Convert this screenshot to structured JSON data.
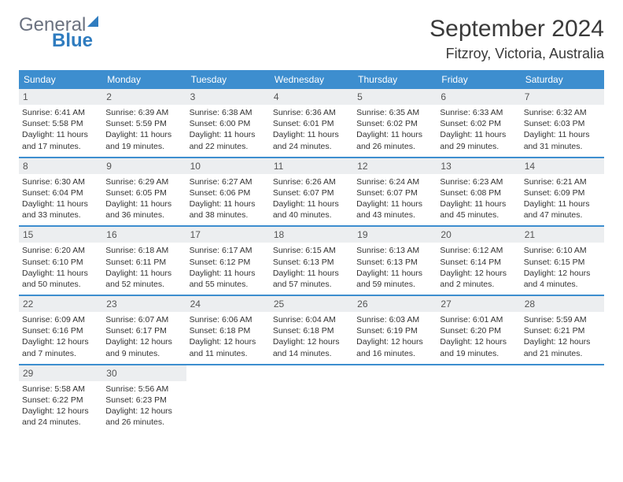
{
  "brand": {
    "word1": "General",
    "word2": "Blue"
  },
  "title": "September 2024",
  "location": "Fitzroy, Victoria, Australia",
  "header_bg": "#3d8ecf",
  "daynum_bg": "#eceef0",
  "dows": [
    "Sunday",
    "Monday",
    "Tuesday",
    "Wednesday",
    "Thursday",
    "Friday",
    "Saturday"
  ],
  "weeks": [
    [
      {
        "n": "1",
        "sr": "Sunrise: 6:41 AM",
        "ss": "Sunset: 5:58 PM",
        "d1": "Daylight: 11 hours",
        "d2": "and 17 minutes."
      },
      {
        "n": "2",
        "sr": "Sunrise: 6:39 AM",
        "ss": "Sunset: 5:59 PM",
        "d1": "Daylight: 11 hours",
        "d2": "and 19 minutes."
      },
      {
        "n": "3",
        "sr": "Sunrise: 6:38 AM",
        "ss": "Sunset: 6:00 PM",
        "d1": "Daylight: 11 hours",
        "d2": "and 22 minutes."
      },
      {
        "n": "4",
        "sr": "Sunrise: 6:36 AM",
        "ss": "Sunset: 6:01 PM",
        "d1": "Daylight: 11 hours",
        "d2": "and 24 minutes."
      },
      {
        "n": "5",
        "sr": "Sunrise: 6:35 AM",
        "ss": "Sunset: 6:02 PM",
        "d1": "Daylight: 11 hours",
        "d2": "and 26 minutes."
      },
      {
        "n": "6",
        "sr": "Sunrise: 6:33 AM",
        "ss": "Sunset: 6:02 PM",
        "d1": "Daylight: 11 hours",
        "d2": "and 29 minutes."
      },
      {
        "n": "7",
        "sr": "Sunrise: 6:32 AM",
        "ss": "Sunset: 6:03 PM",
        "d1": "Daylight: 11 hours",
        "d2": "and 31 minutes."
      }
    ],
    [
      {
        "n": "8",
        "sr": "Sunrise: 6:30 AM",
        "ss": "Sunset: 6:04 PM",
        "d1": "Daylight: 11 hours",
        "d2": "and 33 minutes."
      },
      {
        "n": "9",
        "sr": "Sunrise: 6:29 AM",
        "ss": "Sunset: 6:05 PM",
        "d1": "Daylight: 11 hours",
        "d2": "and 36 minutes."
      },
      {
        "n": "10",
        "sr": "Sunrise: 6:27 AM",
        "ss": "Sunset: 6:06 PM",
        "d1": "Daylight: 11 hours",
        "d2": "and 38 minutes."
      },
      {
        "n": "11",
        "sr": "Sunrise: 6:26 AM",
        "ss": "Sunset: 6:07 PM",
        "d1": "Daylight: 11 hours",
        "d2": "and 40 minutes."
      },
      {
        "n": "12",
        "sr": "Sunrise: 6:24 AM",
        "ss": "Sunset: 6:07 PM",
        "d1": "Daylight: 11 hours",
        "d2": "and 43 minutes."
      },
      {
        "n": "13",
        "sr": "Sunrise: 6:23 AM",
        "ss": "Sunset: 6:08 PM",
        "d1": "Daylight: 11 hours",
        "d2": "and 45 minutes."
      },
      {
        "n": "14",
        "sr": "Sunrise: 6:21 AM",
        "ss": "Sunset: 6:09 PM",
        "d1": "Daylight: 11 hours",
        "d2": "and 47 minutes."
      }
    ],
    [
      {
        "n": "15",
        "sr": "Sunrise: 6:20 AM",
        "ss": "Sunset: 6:10 PM",
        "d1": "Daylight: 11 hours",
        "d2": "and 50 minutes."
      },
      {
        "n": "16",
        "sr": "Sunrise: 6:18 AM",
        "ss": "Sunset: 6:11 PM",
        "d1": "Daylight: 11 hours",
        "d2": "and 52 minutes."
      },
      {
        "n": "17",
        "sr": "Sunrise: 6:17 AM",
        "ss": "Sunset: 6:12 PM",
        "d1": "Daylight: 11 hours",
        "d2": "and 55 minutes."
      },
      {
        "n": "18",
        "sr": "Sunrise: 6:15 AM",
        "ss": "Sunset: 6:13 PM",
        "d1": "Daylight: 11 hours",
        "d2": "and 57 minutes."
      },
      {
        "n": "19",
        "sr": "Sunrise: 6:13 AM",
        "ss": "Sunset: 6:13 PM",
        "d1": "Daylight: 11 hours",
        "d2": "and 59 minutes."
      },
      {
        "n": "20",
        "sr": "Sunrise: 6:12 AM",
        "ss": "Sunset: 6:14 PM",
        "d1": "Daylight: 12 hours",
        "d2": "and 2 minutes."
      },
      {
        "n": "21",
        "sr": "Sunrise: 6:10 AM",
        "ss": "Sunset: 6:15 PM",
        "d1": "Daylight: 12 hours",
        "d2": "and 4 minutes."
      }
    ],
    [
      {
        "n": "22",
        "sr": "Sunrise: 6:09 AM",
        "ss": "Sunset: 6:16 PM",
        "d1": "Daylight: 12 hours",
        "d2": "and 7 minutes."
      },
      {
        "n": "23",
        "sr": "Sunrise: 6:07 AM",
        "ss": "Sunset: 6:17 PM",
        "d1": "Daylight: 12 hours",
        "d2": "and 9 minutes."
      },
      {
        "n": "24",
        "sr": "Sunrise: 6:06 AM",
        "ss": "Sunset: 6:18 PM",
        "d1": "Daylight: 12 hours",
        "d2": "and 11 minutes."
      },
      {
        "n": "25",
        "sr": "Sunrise: 6:04 AM",
        "ss": "Sunset: 6:18 PM",
        "d1": "Daylight: 12 hours",
        "d2": "and 14 minutes."
      },
      {
        "n": "26",
        "sr": "Sunrise: 6:03 AM",
        "ss": "Sunset: 6:19 PM",
        "d1": "Daylight: 12 hours",
        "d2": "and 16 minutes."
      },
      {
        "n": "27",
        "sr": "Sunrise: 6:01 AM",
        "ss": "Sunset: 6:20 PM",
        "d1": "Daylight: 12 hours",
        "d2": "and 19 minutes."
      },
      {
        "n": "28",
        "sr": "Sunrise: 5:59 AM",
        "ss": "Sunset: 6:21 PM",
        "d1": "Daylight: 12 hours",
        "d2": "and 21 minutes."
      }
    ],
    [
      {
        "n": "29",
        "sr": "Sunrise: 5:58 AM",
        "ss": "Sunset: 6:22 PM",
        "d1": "Daylight: 12 hours",
        "d2": "and 24 minutes."
      },
      {
        "n": "30",
        "sr": "Sunrise: 5:56 AM",
        "ss": "Sunset: 6:23 PM",
        "d1": "Daylight: 12 hours",
        "d2": "and 26 minutes."
      },
      null,
      null,
      null,
      null,
      null
    ]
  ]
}
